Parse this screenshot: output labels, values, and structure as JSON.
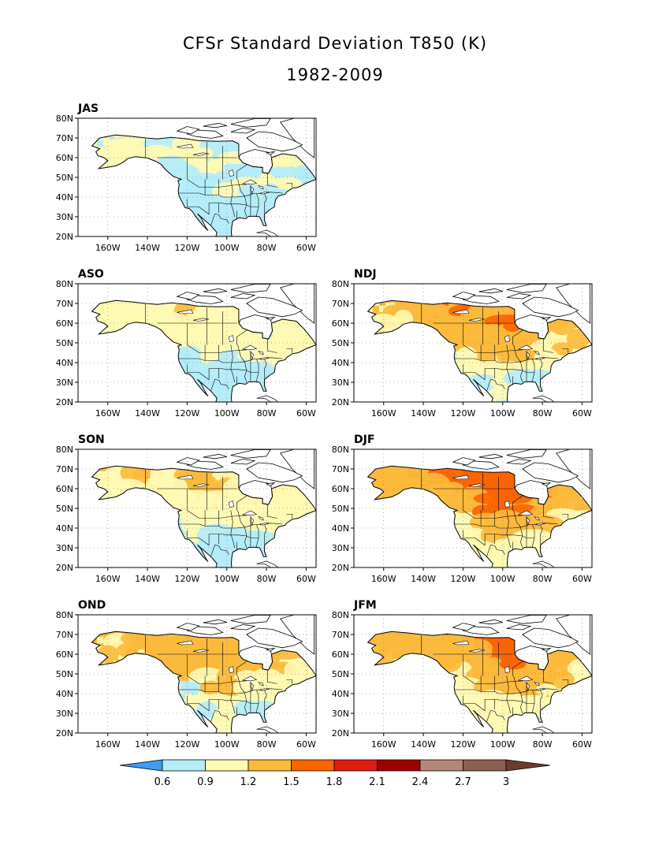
{
  "title": "CFSr Standard Deviation T850 (K)",
  "subtitle": "1982-2009",
  "lat_ticks": [
    "80N",
    "70N",
    "60N",
    "50N",
    "40N",
    "30N",
    "20N"
  ],
  "lon_ticks": [
    "160W",
    "140W",
    "120W",
    "100W",
    "80W",
    "60W"
  ],
  "panels": [
    {
      "label": "JAS",
      "col": 0,
      "row": 0,
      "intensity": 0.15
    },
    {
      "label": "ASO",
      "col": 0,
      "row": 1,
      "intensity": 0.35
    },
    {
      "label": "NDJ",
      "col": 1,
      "row": 1,
      "intensity": 0.85
    },
    {
      "label": "SON",
      "col": 0,
      "row": 2,
      "intensity": 0.55
    },
    {
      "label": "DJF",
      "col": 1,
      "row": 2,
      "intensity": 1.0
    },
    {
      "label": "OND",
      "col": 0,
      "row": 3,
      "intensity": 0.75
    },
    {
      "label": "JFM",
      "col": 1,
      "row": 3,
      "intensity": 0.9
    }
  ],
  "colorbar": {
    "labels": [
      "0.6",
      "0.9",
      "1.2",
      "1.5",
      "1.8",
      "2.1",
      "2.4",
      "2.7",
      "3"
    ],
    "colors": [
      "#3d9ef0",
      "#b4ecf8",
      "#fefab4",
      "#fcba3c",
      "#fc6400",
      "#e01c10",
      "#a00000",
      "#b48878",
      "#8c6050",
      "#6c3c30"
    ]
  }
}
